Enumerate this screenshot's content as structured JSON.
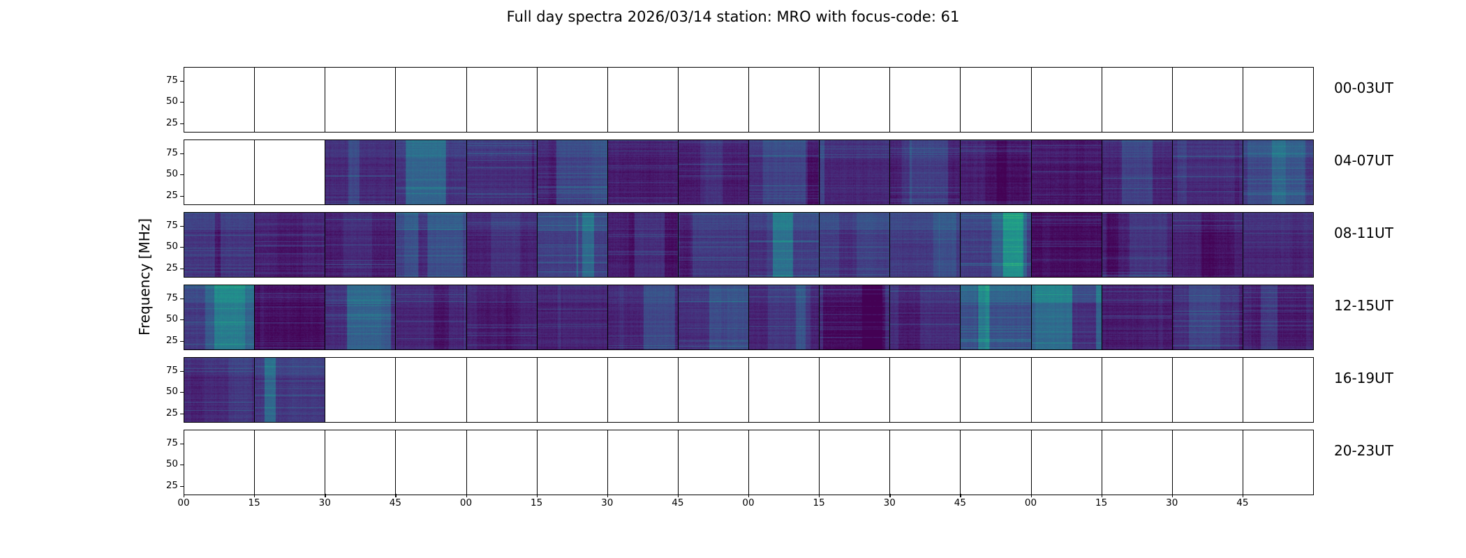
{
  "chart_data": {
    "type": "heatmap",
    "title": "Full day spectra 2026/03/14 station: MRO with focus-code: 61",
    "ylabel": "Frequency [MHz]",
    "xlabel": "",
    "ylim": [
      15,
      91
    ],
    "yticks": [
      "25",
      "50",
      "75"
    ],
    "ytick_values": [
      25,
      50,
      75
    ],
    "xticks": [
      "00",
      "15",
      "30",
      "45",
      "00",
      "15",
      "30",
      "45",
      "00",
      "15",
      "30",
      "45",
      "00",
      "15",
      "30",
      "45"
    ],
    "colormap": "viridis",
    "grid": false,
    "minutes_per_panel": 15,
    "rows": [
      {
        "label": "00-03UT",
        "panel_mean_intensity": [
          null,
          null,
          null,
          null,
          null,
          null,
          null,
          null,
          null,
          null,
          null,
          null,
          null,
          null,
          null,
          null
        ]
      },
      {
        "label": "04-07UT",
        "panel_mean_intensity": [
          null,
          null,
          0.18,
          0.24,
          0.22,
          0.17,
          0.12,
          0.12,
          0.2,
          0.18,
          0.13,
          0.14,
          0.1,
          0.15,
          0.2,
          0.25
        ]
      },
      {
        "label": "08-11UT",
        "panel_mean_intensity": [
          0.25,
          0.15,
          0.12,
          0.3,
          0.15,
          0.3,
          0.12,
          0.22,
          0.3,
          0.3,
          0.28,
          0.28,
          0.05,
          0.15,
          0.15,
          0.18
        ]
      },
      {
        "label": "12-15UT",
        "panel_mean_intensity": [
          0.28,
          0.06,
          0.2,
          0.18,
          0.16,
          0.15,
          0.16,
          0.22,
          0.16,
          0.2,
          0.2,
          0.4,
          0.5,
          0.12,
          0.12,
          0.15
        ]
      },
      {
        "label": "16-19UT",
        "panel_mean_intensity": [
          0.18,
          0.25,
          null,
          null,
          null,
          null,
          null,
          null,
          null,
          null,
          null,
          null,
          null,
          null,
          null,
          null
        ]
      },
      {
        "label": "20-23UT",
        "panel_mean_intensity": [
          null,
          null,
          null,
          null,
          null,
          null,
          null,
          null,
          null,
          null,
          null,
          null,
          null,
          null,
          null,
          null
        ]
      }
    ]
  }
}
